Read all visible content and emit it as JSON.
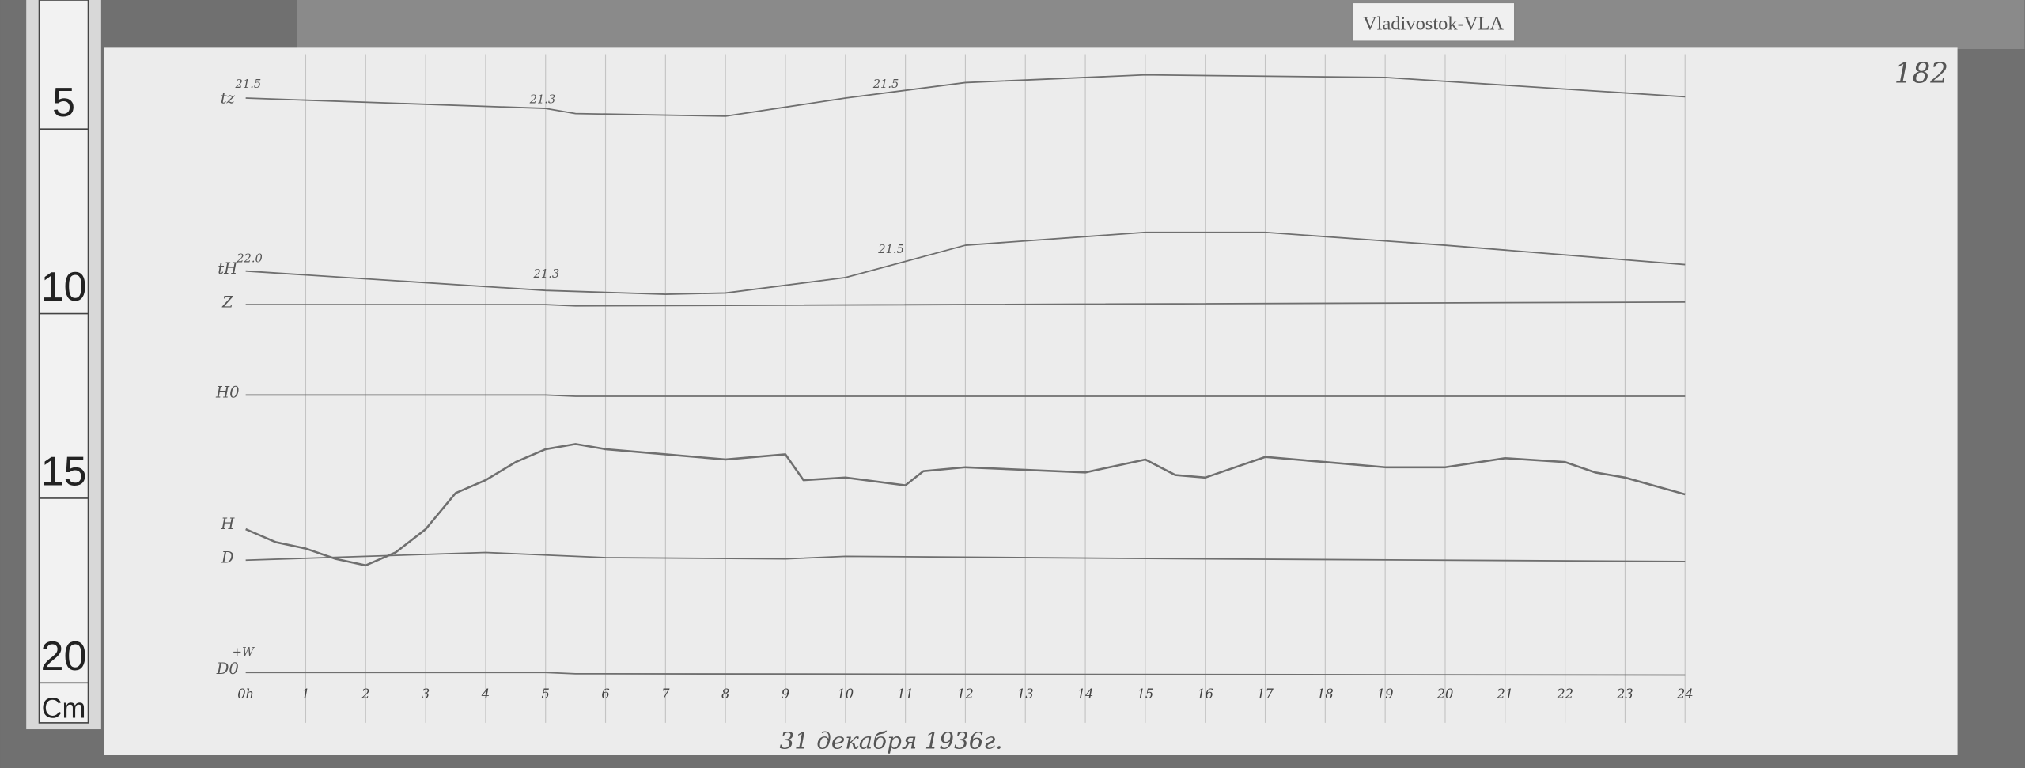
{
  "station_label": "Vladivostok-VLA",
  "page_number": "182",
  "ruler": {
    "marks": [
      "5",
      "10",
      "15",
      "20"
    ],
    "unit": "Cm"
  },
  "footer_note": "31 декабря 1936г.",
  "colors": {
    "paper": "#ececec",
    "trace": "#6f6f6f",
    "grid": "#c4c4c4",
    "board": "#6e6e6e"
  },
  "chart_data": {
    "type": "line",
    "xlabel": "",
    "ylabel": "",
    "x_ticks": [
      "0h",
      "1",
      "2",
      "3",
      "4",
      "5",
      "6",
      "7",
      "8",
      "9",
      "10",
      "11",
      "12",
      "13",
      "14",
      "15",
      "16",
      "17",
      "18",
      "19",
      "20",
      "21",
      "22",
      "23",
      "24"
    ],
    "xlim": [
      0,
      24
    ],
    "grid": true,
    "trace_labels": {
      "tz": "tz",
      "tH": "tH",
      "Z": "Z",
      "H0": "H0",
      "H": "H",
      "D": "D",
      "D0": "D0"
    },
    "annotations": {
      "tz_start": "21.5",
      "tz_5h": "21.3",
      "tz_10h": "21.5",
      "tH_start": "22.0",
      "tH_5h": "21.3",
      "tH_10h": "21.5",
      "D0_sign": "+W"
    },
    "series": [
      {
        "name": "tz",
        "x": [
          0,
          5,
          5.5,
          8,
          10,
          12,
          15,
          19,
          24
        ],
        "values": [
          364,
          356,
          352,
          350,
          364,
          376,
          382,
          380,
          365
        ]
      },
      {
        "name": "tH",
        "x": [
          0,
          5,
          7,
          8,
          10,
          12,
          15,
          17,
          20,
          24
        ],
        "values": [
          230,
          215,
          212,
          213,
          225,
          250,
          260,
          260,
          250,
          235
        ]
      },
      {
        "name": "Z",
        "x": [
          0,
          5,
          5.5,
          24
        ],
        "values": [
          204,
          204,
          203,
          206
        ]
      },
      {
        "name": "H0",
        "x": [
          0,
          5,
          5.5,
          24
        ],
        "values": [
          134,
          134,
          133,
          133
        ]
      },
      {
        "name": "H",
        "x": [
          0,
          0.5,
          1,
          1.5,
          2,
          2.5,
          3,
          3.5,
          4,
          4.5,
          5,
          5.5,
          6,
          7,
          8,
          9,
          9.3,
          10,
          11,
          11.3,
          12,
          13,
          14,
          15,
          15.5,
          16,
          17,
          18,
          19,
          20,
          21,
          22,
          22.5,
          23,
          24
        ],
        "values": [
          30,
          20,
          15,
          7,
          2,
          12,
          30,
          58,
          68,
          82,
          92,
          96,
          92,
          88,
          84,
          88,
          68,
          70,
          64,
          75,
          78,
          76,
          74,
          84,
          72,
          70,
          86,
          82,
          78,
          78,
          85,
          82,
          74,
          70,
          57
        ]
      },
      {
        "name": "D",
        "x": [
          0,
          2,
          4,
          6,
          9,
          10,
          16,
          24
        ],
        "values": [
          6,
          9,
          12,
          8,
          7,
          9,
          7,
          5
        ]
      },
      {
        "name": "D0",
        "x": [
          0,
          5,
          5.5,
          24
        ],
        "values": [
          -81,
          -81,
          -82,
          -83
        ]
      }
    ]
  }
}
